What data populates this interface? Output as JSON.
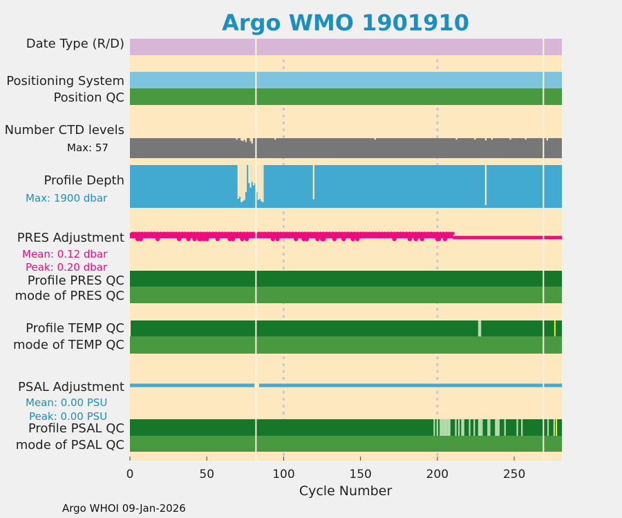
{
  "chart_data": {
    "type": "timeline",
    "title": "Argo WMO 1901910",
    "xlabel": "Cycle Number",
    "xlim": [
      0,
      281
    ],
    "xticks": [
      0,
      50,
      100,
      150,
      200,
      250
    ],
    "footer": "Argo WHOI 09-Jan-2026",
    "colors": {
      "background": "#fde8c0",
      "title": "#1c8fc0",
      "date_type": "#d8b6d8",
      "positioning": "#7fc4de",
      "qc_good": "#48993f",
      "qc_profile_a": "#16762a",
      "qc_profile_pale": "#b9dcae",
      "qc_yellow": "#f2ee1e",
      "ctd": "#777777",
      "depth": "#42a9d1",
      "pres_adj": "#ec0d7e",
      "psal_adj": "#42a9d1",
      "dashed_grid": "#c7c8d6",
      "white_line": "#fff6dc",
      "text": "#222222"
    },
    "white_vlines_at_cycles": [
      82,
      269
    ],
    "dashed_vlines_at_cycles": [
      100,
      200
    ],
    "panels": {
      "date_type": {
        "label": "Date Type (R/D)"
      },
      "positioning": {
        "label1": "Positioning System",
        "label2": "Position QC"
      },
      "ctd": {
        "label": "Number CTD levels",
        "stat": "Max: 57",
        "max_levels": 57,
        "dips": [
          [
            70,
            55
          ],
          [
            73,
            54
          ],
          [
            74,
            53
          ],
          [
            75,
            55
          ],
          [
            76,
            52
          ],
          [
            79,
            53
          ],
          [
            80,
            50
          ],
          [
            95,
            55
          ],
          [
            160,
            55
          ],
          [
            213,
            55
          ],
          [
            225,
            55
          ],
          [
            232,
            54
          ],
          [
            236,
            55
          ],
          [
            248,
            55
          ],
          [
            258,
            55
          ],
          [
            272,
            54
          ]
        ]
      },
      "depth": {
        "label": "Profile Depth",
        "stat": "Max: 1900 dbar",
        "max_dbar": 1900,
        "shallow": [
          [
            71,
            400
          ],
          [
            72,
            500
          ],
          [
            73,
            250
          ],
          [
            74,
            300
          ],
          [
            75,
            350
          ],
          [
            76,
            700
          ],
          [
            78,
            1100
          ],
          [
            79,
            900
          ],
          [
            80,
            1150
          ],
          [
            81,
            1000
          ],
          [
            82,
            1100
          ],
          [
            83,
            700
          ],
          [
            84,
            350
          ],
          [
            85,
            400
          ],
          [
            86,
            300
          ],
          [
            87,
            250
          ],
          [
            120,
            380
          ],
          [
            232,
            130
          ]
        ]
      },
      "pres_adj": {
        "label": "PRES Adjustment",
        "mean": "Mean: 0.12 dbar",
        "peak": "Peak: 0.20 dbar",
        "dip_cycles": [
          5,
          7,
          18,
          32,
          38,
          42,
          45,
          46,
          48,
          50,
          57,
          65,
          67,
          73,
          76,
          93,
          96,
          108,
          113,
          115,
          122,
          125,
          126,
          133,
          139,
          145,
          148,
          172,
          182,
          186,
          190,
          200,
          201,
          205
        ]
      },
      "pres_qc": {
        "label1": "Profile PRES QC",
        "label2": "mode of PRES QC"
      },
      "temp_qc": {
        "label1": "Profile TEMP QC",
        "label2": "mode of TEMP QC",
        "pale_cycles": [
          227
        ],
        "yellow_cycles": [
          276
        ]
      },
      "psal_adj": {
        "label": "PSAL Adjustment",
        "mean": "Mean: 0.00 PSU",
        "peak": "Peak: 0.00 PSU"
      },
      "psal_qc": {
        "label1": "Profile PSAL QC",
        "label2": "mode of PSAL QC",
        "pale_cycles": [
          198,
          200,
          202,
          203,
          204,
          205,
          206,
          207,
          208,
          212,
          214,
          216,
          217,
          221,
          224,
          227,
          228,
          229,
          233,
          234,
          238,
          239,
          240,
          244,
          252,
          255,
          272,
          276
        ],
        "yellow_cycles": [
          277
        ]
      }
    }
  }
}
